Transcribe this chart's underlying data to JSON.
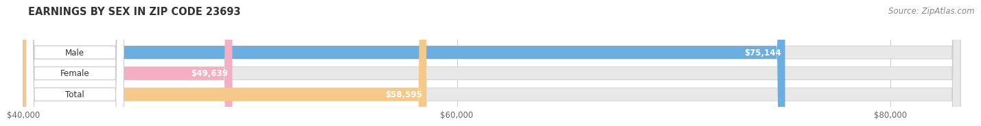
{
  "title": "EARNINGS BY SEX IN ZIP CODE 23693",
  "source": "Source: ZipAtlas.com",
  "categories": [
    "Male",
    "Female",
    "Total"
  ],
  "values": [
    75144,
    49639,
    58595
  ],
  "bar_colors": [
    "#6aafe0",
    "#f4afc4",
    "#f5c98a"
  ],
  "value_labels": [
    "$75,144",
    "$49,639",
    "$58,595"
  ],
  "xmin": 40000,
  "xmax": 83000,
  "xticks": [
    40000,
    60000,
    80000
  ],
  "xtick_labels": [
    "$40,000",
    "$60,000",
    "$80,000"
  ],
  "background_color": "#ffffff",
  "bar_bg_color": "#e8e8e8",
  "title_fontsize": 10.5,
  "source_fontsize": 8.5,
  "bar_height": 0.62,
  "fig_width": 14.06,
  "fig_height": 1.96
}
